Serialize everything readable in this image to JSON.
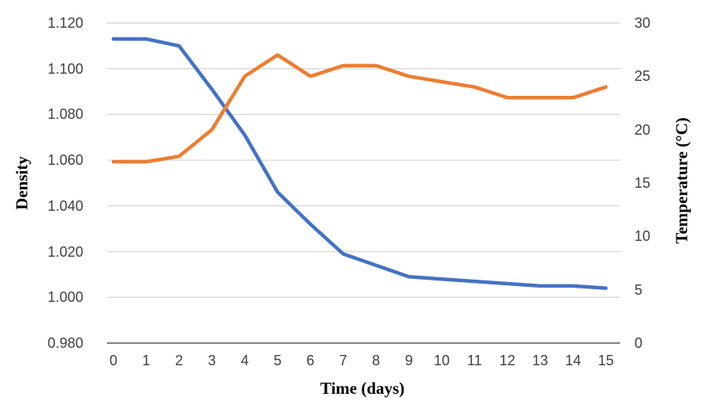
{
  "chart_data": {
    "type": "line",
    "title": "",
    "xlabel": "Time (days)",
    "x": [
      0,
      1,
      2,
      3,
      4,
      5,
      6,
      7,
      8,
      9,
      10,
      11,
      12,
      13,
      14,
      15
    ],
    "x_ticks": [
      "0",
      "1",
      "2",
      "3",
      "4",
      "5",
      "6",
      "7",
      "8",
      "9",
      "10",
      "11",
      "12",
      "13",
      "14",
      "15"
    ],
    "series": [
      {
        "name": "Density",
        "axis": "left",
        "color": "#4472C4",
        "values": [
          1.113,
          1.113,
          1.11,
          1.091,
          1.071,
          1.046,
          1.032,
          1.019,
          1.014,
          1.009,
          1.008,
          1.007,
          1.006,
          1.005,
          1.005,
          1.004
        ]
      },
      {
        "name": "Temperature",
        "axis": "right",
        "color": "#ED7D31",
        "values": [
          17,
          17,
          17.5,
          20,
          25,
          27,
          25,
          26,
          26,
          25,
          24.5,
          24,
          23,
          23,
          23,
          24
        ]
      }
    ],
    "y_left": {
      "label": "Density",
      "min": 0.98,
      "max": 1.12,
      "tick_step": 0.02,
      "ticks": [
        "1.120",
        "1.100",
        "1.080",
        "1.060",
        "1.040",
        "1.020",
        "1.000",
        "0.980"
      ]
    },
    "y_right": {
      "label": "Temperature (°C)",
      "min": 0,
      "max": 30,
      "tick_step": 5,
      "ticks": [
        "30",
        "25",
        "20",
        "15",
        "10",
        "5",
        "0"
      ]
    },
    "grid": true,
    "legend": "none",
    "gridline_color": "#D9D9D9",
    "axis_line_color": "#7F7F7F",
    "tick_label_color": "#404040"
  }
}
